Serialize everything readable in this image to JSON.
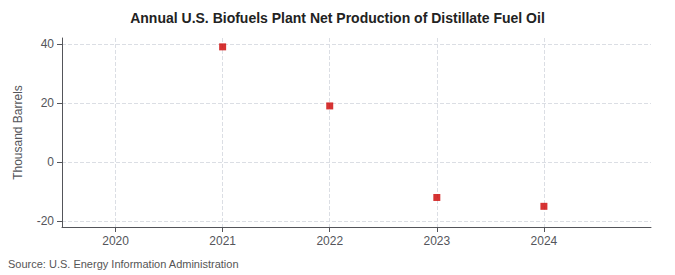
{
  "chart_data": {
    "type": "scatter",
    "title": "Annual U.S. Biofuels Plant Net Production of Distillate Fuel Oil",
    "ylabel": "Thousand Barrels",
    "annotations": [
      "Source: U.S. Energy Information Administration"
    ],
    "x": [
      2021,
      2022,
      2023,
      2024
    ],
    "values": [
      39,
      19,
      -12,
      -15
    ],
    "color": "#cc0000",
    "marker": "square",
    "xlim": [
      2019.5,
      2025.0
    ],
    "ylim": [
      -22,
      42
    ],
    "xticks": [
      2020,
      2021,
      2022,
      2023,
      2024
    ],
    "yticks": [
      -20,
      0,
      20,
      40
    ],
    "grid": true
  }
}
